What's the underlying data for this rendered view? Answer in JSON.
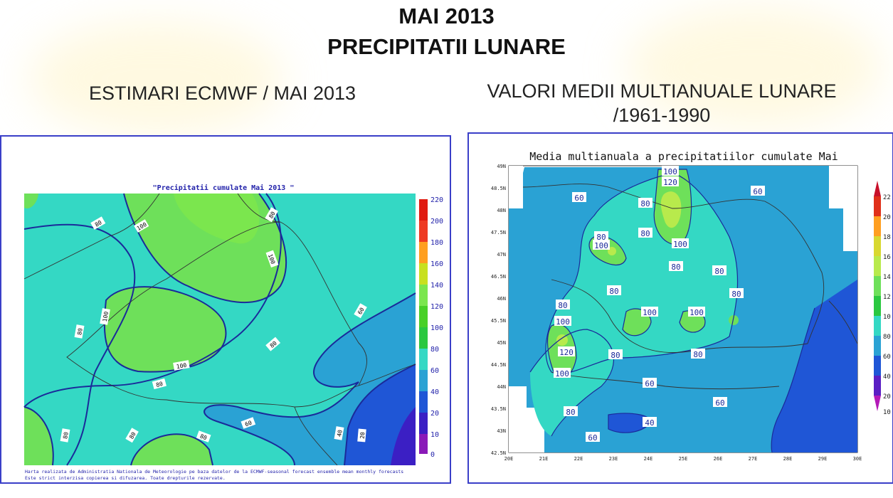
{
  "colors": {
    "panel_border": "#3a3fc8",
    "background": "#ffffff"
  },
  "header": {
    "title": "MAI 2013",
    "subtitle": "PRECIPITATII LUNARE"
  },
  "left": {
    "heading": "ESTIMARI ECMWF / MAI 2013",
    "map_title": "\"Precipitatii cumulate Mai 2013 \"",
    "colorbar": [
      "220",
      "200",
      "180",
      "160",
      "140",
      "120",
      "100",
      "80",
      "60",
      "40",
      "20",
      "10",
      "0"
    ],
    "contour_labels": [
      "80",
      "100",
      "80",
      "100",
      "80",
      "60",
      "80",
      "100",
      "100",
      "80",
      "80",
      "60",
      "80",
      "80",
      "40",
      "20"
    ],
    "footer_1": "Harta realizata de Administratia Nationala de Meteorologie pe baza datelor de la ECMWF-seasonal forecast ensemble mean monthly forecasts",
    "footer_2": "Este strict interzisa copierea si difuzarea. Toate drepturile rezervate."
  },
  "right": {
    "heading_1": "VALORI MEDII MULTIANUALE LUNARE",
    "heading_2": "/1961-1990",
    "map_title": "Media multianuala a precipitatiilor cumulate Mai",
    "lat_ticks": [
      "49N",
      "48.5N",
      "48N",
      "47.5N",
      "47N",
      "46.5N",
      "46N",
      "45.5N",
      "45N",
      "44.5N",
      "44N",
      "43.5N",
      "43N",
      "42.5N"
    ],
    "lon_ticks": [
      "20E",
      "21E",
      "22E",
      "23E",
      "24E",
      "25E",
      "26E",
      "27E",
      "28E",
      "29E",
      "30E"
    ],
    "colorbar": [
      "22",
      "20",
      "18",
      "16",
      "14",
      "12",
      "10",
      "80",
      "60",
      "40",
      "20",
      "10"
    ],
    "contour_labels": [
      "100",
      "120",
      "60",
      "80",
      "60",
      "80",
      "80",
      "100",
      "100",
      "80",
      "80",
      "80",
      "80",
      "100",
      "100",
      "80",
      "100",
      "120",
      "80",
      "80",
      "100",
      "60",
      "60",
      "80",
      "40",
      "60"
    ]
  }
}
